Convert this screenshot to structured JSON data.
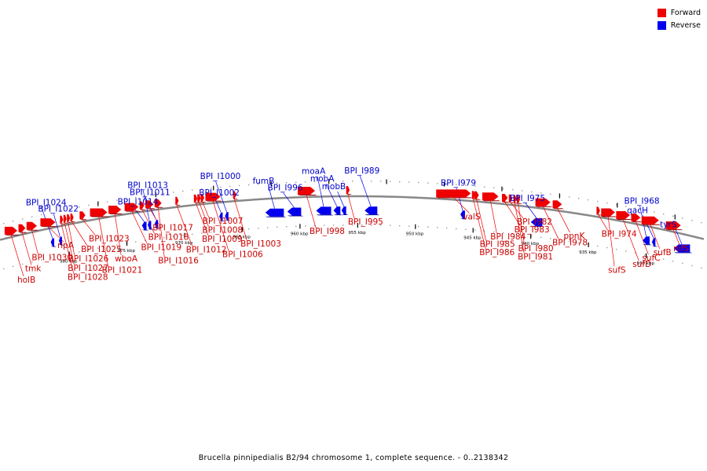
{
  "title": "Brucella pinnipedialis B2/94 chromosome 1, complete sequence. - 0..2138342",
  "colors": {
    "forward": "#ee0000",
    "forward_side": "#9b0000",
    "reverse": "#0000ee",
    "reverse_side": "#00009b",
    "forward_label": "#cc0000",
    "reverse_label": "#0000cc"
  },
  "legend": {
    "forward_label": "Forward",
    "reverse_label": "Reverse"
  },
  "ticks": [
    {
      "kbp": 930,
      "label": "930 kbp"
    },
    {
      "kbp": 935,
      "label": "935 kbp"
    },
    {
      "kbp": 940,
      "label": "940 kbp"
    },
    {
      "kbp": 945,
      "label": "945 kbp"
    },
    {
      "kbp": 950,
      "label": "950 kbp"
    },
    {
      "kbp": 955,
      "label": "955 kbp"
    },
    {
      "kbp": 960,
      "label": "960 kbp"
    },
    {
      "kbp": 965,
      "label": "965 kbp"
    },
    {
      "kbp": 970,
      "label": "970 kbp"
    },
    {
      "kbp": 975,
      "label": "975 kbp"
    },
    {
      "kbp": 980,
      "label": "980 kbp"
    }
  ],
  "reverse_genes": [
    {
      "name": "tyrS",
      "start": 926.2,
      "end": 927.6
    },
    {
      "name": "qacH",
      "start": 929.2,
      "end": 929.5
    },
    {
      "name": "BPI_I968",
      "start": 929.7,
      "end": 930.3
    },
    {
      "name": "BPI_I975",
      "start": 939.0,
      "end": 940.0
    },
    {
      "name": "BPI_I979",
      "start": 945.7,
      "end": 946.1
    },
    {
      "name": "BPI_I989",
      "start": 953.3,
      "end": 954.4
    },
    {
      "name": "mobB",
      "start": 956.0,
      "end": 956.4
    },
    {
      "name": "mobA",
      "start": 956.5,
      "end": 957.1
    },
    {
      "name": "moaA",
      "start": 957.3,
      "end": 958.6
    },
    {
      "name": "BPI_I996",
      "start": 959.9,
      "end": 961.1
    },
    {
      "name": "fumB",
      "start": 961.4,
      "end": 963.0
    },
    {
      "name": "BPI_I1000",
      "start": 966.2,
      "end": 966.5
    },
    {
      "name": "BPI_I1002",
      "start": 966.7,
      "end": 967.0
    },
    {
      "name": "BPI_I1011",
      "start": 972.3,
      "end": 972.6
    },
    {
      "name": "BPI_I1013",
      "start": 972.9,
      "end": 973.2
    },
    {
      "name": "BPI_I1014",
      "start": 973.3,
      "end": 973.7
    },
    {
      "name": "BPI_I1022",
      "start": 980.7,
      "end": 980.9
    },
    {
      "name": "BPI_I1024",
      "start": 981.3,
      "end": 981.6
    }
  ],
  "forward_genes": [
    {
      "name": "nifS",
      "start": 927.0,
      "end": 928.3
    },
    {
      "name": "sufB",
      "start": 928.9,
      "end": 930.4
    },
    {
      "name": "sufC",
      "start": 930.5,
      "end": 931.3
    },
    {
      "name": "sufD",
      "start": 931.4,
      "end": 932.6
    },
    {
      "name": "sufS",
      "start": 932.7,
      "end": 933.9
    },
    {
      "name": "BPI_I974",
      "start": 934.0,
      "end": 934.3
    },
    {
      "name": "ppnK",
      "start": 937.3,
      "end": 938.1
    },
    {
      "name": "BPI_I978",
      "start": 938.3,
      "end": 939.6
    },
    {
      "name": "BPI_I980",
      "start": 941.0,
      "end": 941.2
    },
    {
      "name": "BPI_I981",
      "start": 941.3,
      "end": 941.5
    },
    {
      "name": "BPI_I982",
      "start": 941.6,
      "end": 941.9
    },
    {
      "name": "BPI_I983",
      "start": 942.0,
      "end": 942.5
    },
    {
      "name": "BPI_I984",
      "start": 942.8,
      "end": 944.2
    },
    {
      "name": "BPI_I985",
      "start": 944.5,
      "end": 944.9
    },
    {
      "name": "BPI_I986",
      "start": 944.9,
      "end": 945.1
    },
    {
      "name": "valS",
      "start": 945.2,
      "end": 948.2
    },
    {
      "name": "BPI_I995",
      "start": 955.7,
      "end": 956.0
    },
    {
      "name": "BPI_I998",
      "start": 958.7,
      "end": 960.2
    },
    {
      "name": "BPI_I1003",
      "start": 965.6,
      "end": 965.8
    },
    {
      "name": "BPI_I1006",
      "start": 966.9,
      "end": 968.2
    },
    {
      "name": "BPI_I1007",
      "start": 968.3,
      "end": 968.6
    },
    {
      "name": "BPI_I1008",
      "start": 968.6,
      "end": 968.9
    },
    {
      "name": "BPI_I1009",
      "start": 968.9,
      "end": 969.2
    },
    {
      "name": "BPI_I1012",
      "start": 970.6,
      "end": 970.8
    },
    {
      "name": "BPI_I1016",
      "start": 972.0,
      "end": 972.6
    },
    {
      "name": "BPI_I1017",
      "start": 972.7,
      "end": 973.4
    },
    {
      "name": "BPI_I1018",
      "start": 973.5,
      "end": 973.9
    },
    {
      "name": "BPI_I1019",
      "start": 974.0,
      "end": 975.2
    },
    {
      "name": "wboA",
      "start": 975.5,
      "end": 976.6
    },
    {
      "name": "BPI_I1021",
      "start": 976.7,
      "end": 978.2
    },
    {
      "name": "BPI_I1023",
      "start": 978.6,
      "end": 979.1
    },
    {
      "name": "BPI_I1025",
      "start": 979.7,
      "end": 979.9
    },
    {
      "name": "BPI_I1026",
      "start": 980.0,
      "end": 980.2
    },
    {
      "name": "BPI_I1027",
      "start": 980.3,
      "end": 980.5
    },
    {
      "name": "BPI_I1028",
      "start": 980.6,
      "end": 980.8
    },
    {
      "name": "rlpA",
      "start": 981.2,
      "end": 982.5
    },
    {
      "name": "BPI_I1030",
      "start": 982.8,
      "end": 983.7
    },
    {
      "name": "tmk",
      "start": 983.8,
      "end": 984.4
    },
    {
      "name": "holB",
      "start": 984.5,
      "end": 985.6
    }
  ]
}
